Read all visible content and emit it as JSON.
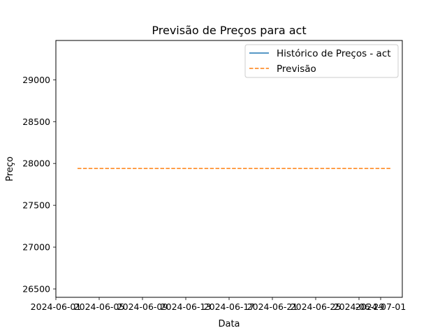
{
  "chart_data": {
    "type": "line",
    "title": "Previsão de Preços para act",
    "xlabel": "Data",
    "ylabel": "Preço",
    "x_type": "date",
    "xlim": [
      "2024-06-01",
      "2024-07-03"
    ],
    "ylim": [
      26400,
      29470
    ],
    "x_ticks": [
      "2024-06-01",
      "2024-06-05",
      "2024-06-09",
      "2024-06-13",
      "2024-06-17",
      "2024-06-21",
      "2024-06-25",
      "2024-06-29",
      "2024-07-01"
    ],
    "y_ticks": [
      26500,
      27000,
      27500,
      28000,
      28500,
      29000
    ],
    "grid": false,
    "legend_position": "top-right",
    "series": [
      {
        "name": "Histórico de Preços - act",
        "style": "solid",
        "color": "#1f77b4",
        "x": [],
        "y": []
      },
      {
        "name": "Previsão",
        "style": "dashed",
        "color": "#ff7f0e",
        "x": [
          "2024-06-03",
          "2024-07-02"
        ],
        "y": [
          27940,
          27940
        ]
      }
    ]
  }
}
